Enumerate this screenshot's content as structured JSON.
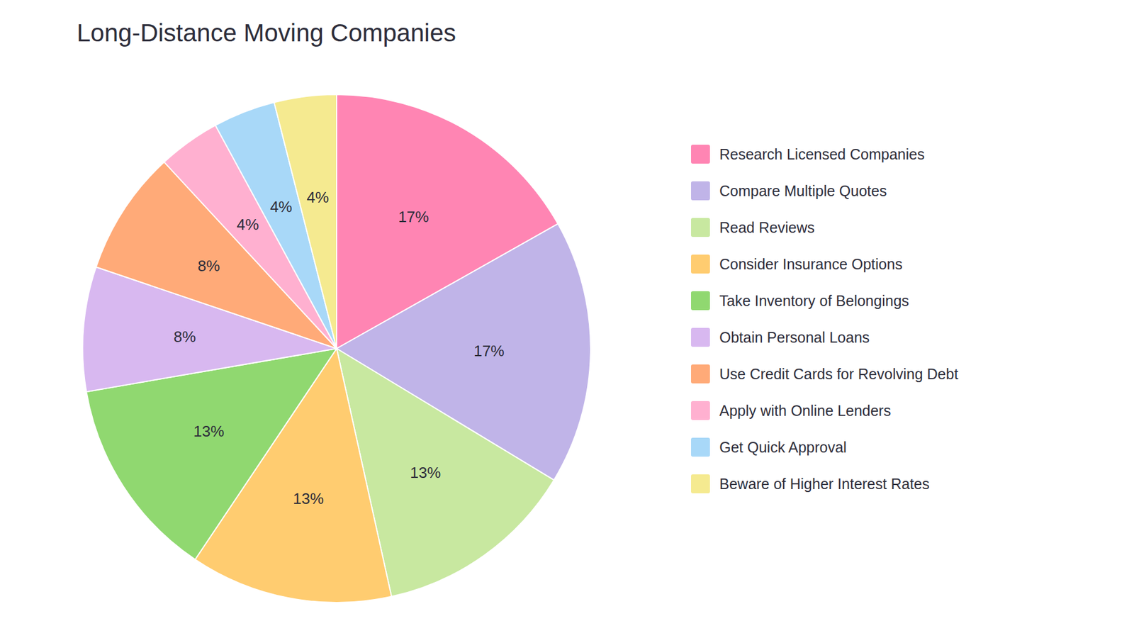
{
  "chart_data": {
    "type": "pie",
    "title": "Long-Distance Moving Companies",
    "categories": [
      "Research Licensed Companies",
      "Compare Multiple Quotes",
      "Read Reviews",
      "Consider Insurance Options",
      "Take Inventory of Belongings",
      "Obtain Personal Loans",
      "Use Credit Cards for Revolving Debt",
      "Apply with Online Lenders",
      "Get Quick Approval",
      "Beware of Higher Interest Rates"
    ],
    "values": [
      17,
      17,
      13,
      13,
      13,
      8,
      8,
      4,
      4,
      4
    ],
    "value_labels": [
      "17%",
      "17%",
      "13%",
      "13%",
      "13%",
      "8%",
      "8%",
      "4%",
      "4%",
      "4%"
    ],
    "colors": [
      "#FF85B3",
      "#C0B4E8",
      "#C8E8A0",
      "#FFCC70",
      "#90D870",
      "#D8B8F0",
      "#FFAA78",
      "#FFB0D0",
      "#A8D8F8",
      "#F5EA90"
    ],
    "data_labels": true,
    "legend": "right"
  }
}
